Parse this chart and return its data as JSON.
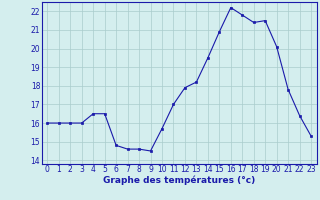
{
  "hours": [
    0,
    1,
    2,
    3,
    4,
    5,
    6,
    7,
    8,
    9,
    10,
    11,
    12,
    13,
    14,
    15,
    16,
    17,
    18,
    19,
    20,
    21,
    22,
    23
  ],
  "temps": [
    16.0,
    16.0,
    16.0,
    16.0,
    16.5,
    16.5,
    14.8,
    14.6,
    14.6,
    14.5,
    15.7,
    17.0,
    17.9,
    18.2,
    19.5,
    20.9,
    22.2,
    21.8,
    21.4,
    21.5,
    20.1,
    17.8,
    16.4,
    15.3
  ],
  "line_color": "#1a1aaa",
  "marker": "s",
  "marker_size": 1.8,
  "bg_color": "#d4eeee",
  "grid_color": "#aacccc",
  "xlabel": "Graphe des températures (°c)",
  "xlabel_color": "#1a1aaa",
  "xlabel_fontsize": 6.5,
  "tick_color": "#1a1aaa",
  "tick_fontsize": 5.5,
  "ylim": [
    13.8,
    22.5
  ],
  "yticks": [
    14,
    15,
    16,
    17,
    18,
    19,
    20,
    21,
    22
  ],
  "xlim": [
    -0.5,
    23.5
  ],
  "xticks": [
    0,
    1,
    2,
    3,
    4,
    5,
    6,
    7,
    8,
    9,
    10,
    11,
    12,
    13,
    14,
    15,
    16,
    17,
    18,
    19,
    20,
    21,
    22,
    23
  ]
}
